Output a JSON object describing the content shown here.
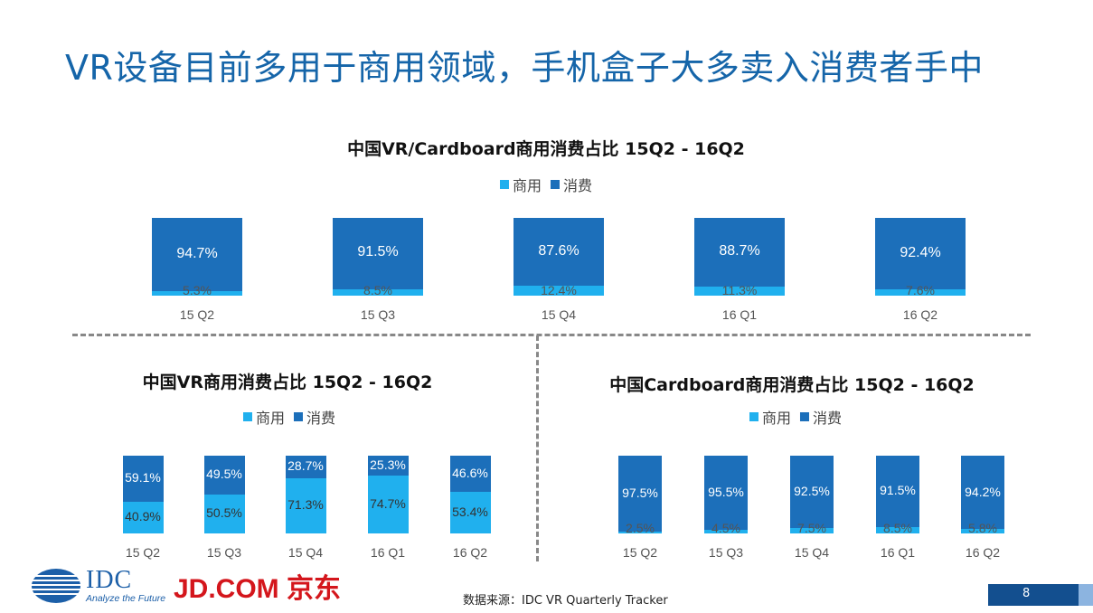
{
  "slide": {
    "title": "VR设备目前多用于商用领域，手机盒子大多卖入消费者手中",
    "source": "数据来源：IDC VR Quarterly Tracker",
    "page_number": "8",
    "logos": {
      "idc": "IDC",
      "idc_tagline": "Analyze the Future",
      "jd": "JD.COM 京东"
    }
  },
  "colors": {
    "commercial": "#20b0ee",
    "consumer": "#1c6fba"
  },
  "chart_data": [
    {
      "id": "top",
      "type": "bar",
      "stacked": true,
      "title": "中国VR/Cardboard商用消费占比  15Q2 - 16Q2",
      "legend": [
        "商用",
        "消费"
      ],
      "categories": [
        "15 Q2",
        "15 Q3",
        "15 Q4",
        "16 Q1",
        "16 Q2"
      ],
      "series": [
        {
          "name": "商用",
          "values": [
            5.3,
            8.5,
            12.4,
            11.3,
            7.6
          ],
          "labels": [
            "5.3%",
            "8.5%",
            "12.4%",
            "11.3%",
            "7.6%"
          ]
        },
        {
          "name": "消费",
          "values": [
            94.7,
            91.5,
            87.6,
            88.7,
            92.4
          ],
          "labels": [
            "94.7%",
            "91.5%",
            "87.6%",
            "88.7%",
            "92.4%"
          ]
        }
      ],
      "ylim": [
        0,
        100
      ]
    },
    {
      "id": "vr",
      "type": "bar",
      "stacked": true,
      "title": "中国VR商用消费占比 15Q2 - 16Q2",
      "legend": [
        "商用",
        "消费"
      ],
      "categories": [
        "15 Q2",
        "15 Q3",
        "15 Q4",
        "16 Q1",
        "16 Q2"
      ],
      "series": [
        {
          "name": "商用",
          "values": [
            40.9,
            50.5,
            71.3,
            74.7,
            53.4
          ],
          "labels": [
            "40.9%",
            "50.5%",
            "71.3%",
            "74.7%",
            "53.4%"
          ]
        },
        {
          "name": "消费",
          "values": [
            59.1,
            49.5,
            28.7,
            25.3,
            46.6
          ],
          "labels": [
            "59.1%",
            "49.5%",
            "28.7%",
            "25.3%",
            "46.6%"
          ]
        }
      ],
      "ylim": [
        0,
        100
      ]
    },
    {
      "id": "cardboard",
      "type": "bar",
      "stacked": true,
      "title": "中国Cardboard商用消费占比 15Q2 - 16Q2",
      "legend": [
        "商用",
        "消费"
      ],
      "categories": [
        "15 Q2",
        "15 Q3",
        "15 Q4",
        "16 Q1",
        "16 Q2"
      ],
      "series": [
        {
          "name": "商用",
          "values": [
            2.5,
            4.5,
            7.5,
            8.5,
            5.8
          ],
          "labels": [
            "2.5%",
            "4.5%",
            "7.5%",
            "8.5%",
            "5.8%"
          ]
        },
        {
          "name": "消费",
          "values": [
            97.5,
            95.5,
            92.5,
            91.5,
            94.2
          ],
          "labels": [
            "97.5%",
            "95.5%",
            "92.5%",
            "91.5%",
            "94.2%"
          ]
        }
      ],
      "ylim": [
        0,
        100
      ]
    }
  ]
}
